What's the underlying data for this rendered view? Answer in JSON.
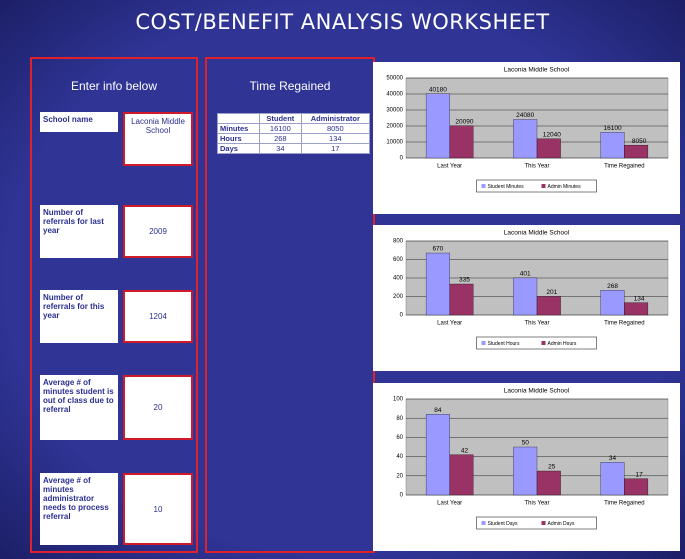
{
  "title": "COST/BENEFIT ANALYSIS WORKSHEET",
  "inputs": {
    "heading": "Enter info below",
    "rows": [
      {
        "label": "School name",
        "value": "Laconia Middle School"
      },
      {
        "label": "Number of referrals for last year",
        "value": 2009
      },
      {
        "label": "Number of referrals for this year",
        "value": 1204
      },
      {
        "label": "Average # of minutes student is out of class due to referral",
        "value": 20
      },
      {
        "label": "Average # of minutes administrator needs to process referral",
        "value": 10
      }
    ]
  },
  "table": {
    "heading": "Time Regained",
    "columns": [
      "Student",
      "Administrator"
    ],
    "rows": [
      [
        "Minutes",
        16100,
        8050
      ],
      [
        "Hours",
        268,
        134
      ],
      [
        "Days",
        34,
        17
      ]
    ]
  },
  "chart_data": [
    {
      "type": "bar",
      "title": "Laconia Middle School",
      "categories": [
        "Last Year",
        "This Year",
        "Time Regained"
      ],
      "series": [
        {
          "name": "Student Minutes",
          "color": "#9999ff",
          "values": [
            40180,
            24080,
            16100
          ]
        },
        {
          "name": "Admin Minutes",
          "color": "#993366",
          "values": [
            20090,
            12040,
            8050
          ]
        }
      ],
      "ylim": [
        0,
        50000
      ],
      "yticks": [
        0,
        10000,
        20000,
        30000,
        40000,
        50000
      ],
      "grid": true,
      "legend": "bottom"
    },
    {
      "type": "bar",
      "title": "Laconia Middle School",
      "categories": [
        "Last Year",
        "This Year",
        "Time Regained"
      ],
      "series": [
        {
          "name": "Student Hours",
          "color": "#9999ff",
          "values": [
            670,
            401,
            268
          ]
        },
        {
          "name": "Admin Hours",
          "color": "#993366",
          "values": [
            335,
            201,
            134
          ]
        }
      ],
      "ylim": [
        0,
        800
      ],
      "yticks": [
        0,
        200,
        400,
        600,
        800
      ],
      "grid": true,
      "legend": "bottom"
    },
    {
      "type": "bar",
      "title": "Laconia Middle School",
      "categories": [
        "Last Year",
        "This Year",
        "Time Regained"
      ],
      "series": [
        {
          "name": "Student Days",
          "color": "#9999ff",
          "values": [
            84,
            50,
            34
          ]
        },
        {
          "name": "Admin Days",
          "color": "#993366",
          "values": [
            42,
            25,
            17
          ]
        }
      ],
      "ylim": [
        0,
        100
      ],
      "yticks": [
        0,
        20,
        40,
        60,
        80,
        100
      ],
      "grid": true,
      "legend": "bottom"
    }
  ]
}
